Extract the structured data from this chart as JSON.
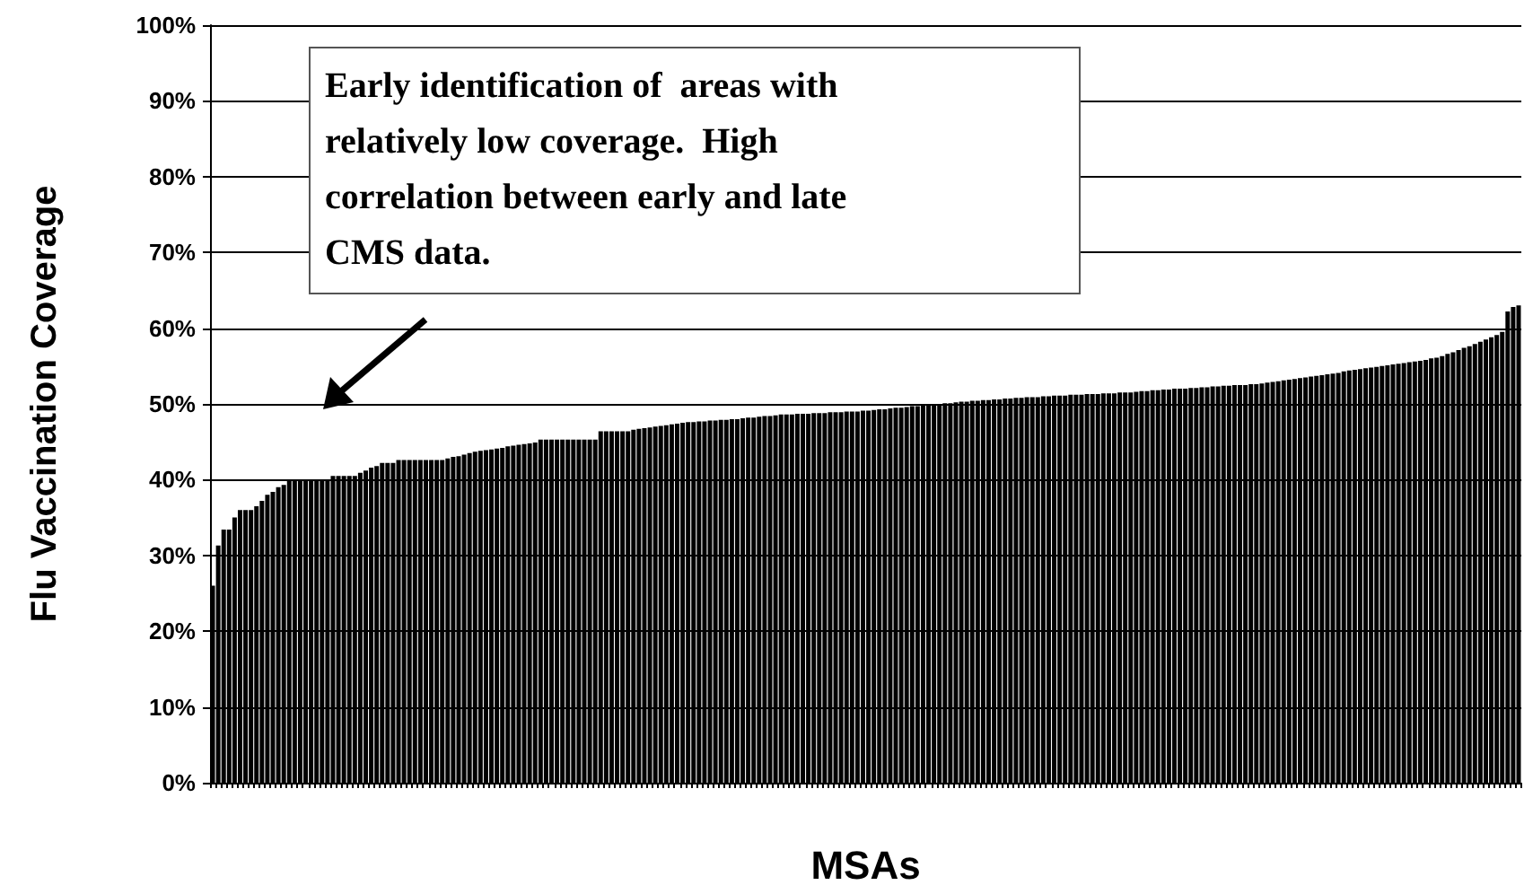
{
  "chart_data": {
    "type": "bar",
    "xlabel": "MSAs",
    "ylabel": "Flu Vaccination Coverage",
    "annotations": [
      "Early identification of  areas with\nrelatively low coverage.  High\ncorrelation between early and late\nCMS data."
    ],
    "categories": [
      null,
      null,
      null,
      null,
      null,
      null,
      null,
      null,
      null,
      null,
      null,
      null,
      null,
      null,
      null,
      null,
      null,
      null,
      null,
      null,
      null,
      null,
      null,
      null,
      null,
      null,
      null,
      null,
      null,
      null,
      null,
      null,
      null,
      null,
      null,
      null,
      null,
      null,
      null,
      null,
      null,
      null,
      null,
      null,
      null,
      null,
      null,
      null,
      null,
      null,
      null,
      null,
      null,
      null,
      null,
      null,
      null,
      null,
      null,
      null,
      null,
      null,
      null,
      null,
      null,
      null,
      null,
      null,
      null,
      null,
      null,
      null,
      null,
      null,
      null,
      null,
      null,
      null,
      null,
      null,
      null,
      null,
      null,
      null,
      null,
      null,
      null,
      null,
      null,
      null,
      null,
      null,
      null,
      null,
      null,
      null,
      null,
      null,
      null,
      null,
      null,
      null,
      null,
      null,
      null,
      null,
      null,
      null,
      null,
      null,
      null,
      null,
      null,
      null,
      null,
      null,
      null,
      null,
      null,
      null,
      null,
      null,
      null,
      null,
      null,
      null,
      null,
      null,
      null,
      null,
      null,
      null,
      null,
      null,
      null,
      null,
      null,
      null,
      null,
      null,
      null,
      null,
      null,
      null,
      null,
      null,
      null,
      null,
      null,
      null,
      null,
      null,
      null,
      null,
      null,
      null,
      null,
      null,
      null,
      null,
      null,
      null,
      null,
      null,
      null,
      null,
      null,
      null,
      null,
      null,
      null,
      null,
      null,
      null,
      null,
      null,
      null,
      null,
      null,
      null,
      null,
      null,
      null,
      null,
      null,
      null,
      null,
      null,
      null,
      null,
      null,
      null,
      null,
      null,
      null,
      null,
      null,
      null,
      null,
      null,
      null,
      null,
      null,
      null,
      null,
      null,
      null,
      null,
      null,
      null,
      null,
      null,
      null,
      null,
      null,
      null,
      null,
      null,
      null,
      null,
      null,
      null,
      null,
      null,
      null,
      null,
      null,
      null,
      null,
      null,
      null,
      null,
      null,
      null,
      null,
      null,
      null,
      null,
      null,
      null
    ],
    "values": [
      26,
      31.3,
      33.4,
      33.4,
      35,
      36,
      36,
      36,
      36.5,
      37.2,
      38,
      38.4,
      39,
      39.3,
      39.9,
      39.9,
      39.9,
      39.9,
      39.9,
      39.9,
      39.9,
      39.9,
      40.5,
      40.5,
      40.5,
      40.5,
      40.5,
      40.9,
      41.2,
      41.6,
      41.8,
      42.2,
      42.2,
      42.2,
      42.6,
      42.6,
      42.6,
      42.6,
      42.6,
      42.6,
      42.6,
      42.6,
      42.6,
      42.8,
      43,
      43.1,
      43.3,
      43.5,
      43.7,
      43.8,
      43.9,
      44,
      44.1,
      44.2,
      44.4,
      44.5,
      44.6,
      44.7,
      44.8,
      44.9,
      45.3,
      45.3,
      45.3,
      45.3,
      45.3,
      45.3,
      45.3,
      45.3,
      45.3,
      45.3,
      45.3,
      46.4,
      46.4,
      46.4,
      46.4,
      46.4,
      46.4,
      46.6,
      46.7,
      46.8,
      46.9,
      47,
      47.1,
      47.2,
      47.3,
      47.4,
      47.5,
      47.6,
      47.6,
      47.7,
      47.7,
      47.8,
      47.8,
      47.9,
      47.9,
      48,
      48,
      48.1,
      48.2,
      48.2,
      48.3,
      48.4,
      48.4,
      48.5,
      48.6,
      48.6,
      48.6,
      48.7,
      48.7,
      48.7,
      48.8,
      48.8,
      48.8,
      48.9,
      48.9,
      48.9,
      49,
      49,
      49,
      49.1,
      49.1,
      49.2,
      49.3,
      49.3,
      49.4,
      49.5,
      49.5,
      49.6,
      49.7,
      49.7,
      49.8,
      49.9,
      49.9,
      50,
      50.1,
      50.1,
      50.2,
      50.3,
      50.3,
      50.4,
      50.4,
      50.5,
      50.5,
      50.6,
      50.6,
      50.7,
      50.7,
      50.8,
      50.8,
      50.9,
      50.9,
      50.9,
      51,
      51,
      51.1,
      51.1,
      51.1,
      51.2,
      51.2,
      51.2,
      51.3,
      51.3,
      51.3,
      51.4,
      51.4,
      51.4,
      51.5,
      51.5,
      51.5,
      51.6,
      51.7,
      51.7,
      51.8,
      51.8,
      51.9,
      51.9,
      52,
      52,
      52,
      52.1,
      52.1,
      52.2,
      52.2,
      52.3,
      52.3,
      52.4,
      52.4,
      52.5,
      52.5,
      52.5,
      52.6,
      52.6,
      52.7,
      52.8,
      52.9,
      53,
      53.1,
      53.2,
      53.3,
      53.4,
      53.5,
      53.6,
      53.7,
      53.8,
      53.9,
      54,
      54.1,
      54.3,
      54.4,
      54.5,
      54.6,
      54.7,
      54.8,
      54.9,
      55,
      55.1,
      55.2,
      55.3,
      55.4,
      55.5,
      55.6,
      55.7,
      55.8,
      56,
      56.1,
      56.3,
      56.6,
      56.8,
      57.1,
      57.4,
      57.6,
      57.9,
      58.2,
      58.5,
      58.8,
      59.1,
      59.5,
      62.2,
      62.8,
      63
    ],
    "color": "#000000",
    "ylim": [
      0,
      100
    ],
    "yticks": [
      {
        "value": 0,
        "label": "0%"
      },
      {
        "value": 10,
        "label": "10%"
      },
      {
        "value": 20,
        "label": "20%"
      },
      {
        "value": 30,
        "label": "30%"
      },
      {
        "value": 40,
        "label": "40%"
      },
      {
        "value": 50,
        "label": "50%"
      },
      {
        "value": 60,
        "label": "60%"
      },
      {
        "value": 70,
        "label": "70%"
      },
      {
        "value": 80,
        "label": "80%"
      },
      {
        "value": 90,
        "label": "90%"
      },
      {
        "value": 100,
        "label": "100%"
      }
    ],
    "grid": "y"
  }
}
